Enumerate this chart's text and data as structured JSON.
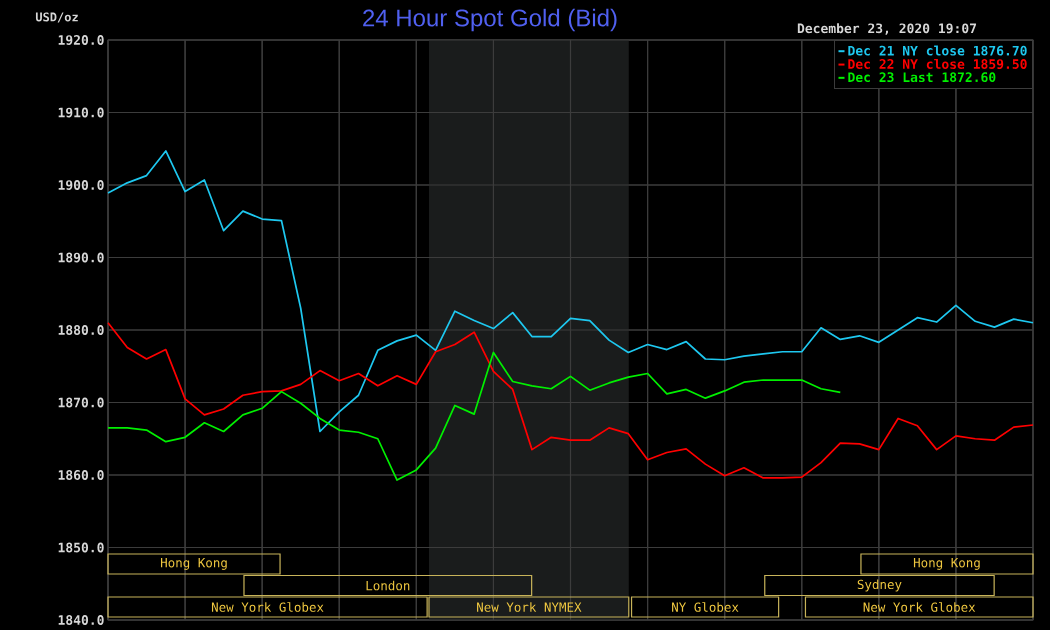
{
  "chart_data": {
    "type": "line",
    "title": "24 Hour Spot Gold (Bid)",
    "ylabel": "USD/oz",
    "annotations": [
      "December 23, 2020 19:07",
      "Hong Kong",
      "Hong Kong",
      "London",
      "Sydney",
      "New York Globex",
      "New York NYMEX",
      "NY Globex",
      "New York Globex"
    ],
    "categories": [
      null,
      null,
      null,
      null,
      null,
      null,
      null,
      null,
      null,
      null,
      null,
      null,
      null,
      null,
      null,
      null,
      null,
      null,
      null,
      null,
      null,
      null,
      null,
      null,
      null,
      null,
      null,
      null,
      null,
      null,
      null,
      null,
      null,
      null,
      null,
      null,
      null,
      null,
      null,
      null,
      null,
      null,
      null,
      null,
      null,
      null,
      null,
      null,
      null
    ],
    "ylim": [
      1840,
      1920
    ],
    "yticks": [
      {
        "value": 1840,
        "label": "1840.0"
      },
      {
        "value": 1850,
        "label": "1850.0"
      },
      {
        "value": 1860,
        "label": "1860.0"
      },
      {
        "value": 1870,
        "label": "1870.0"
      },
      {
        "value": 1880,
        "label": "1880.0"
      },
      {
        "value": 1890,
        "label": "1890.0"
      },
      {
        "value": 1900,
        "label": "1900.0"
      },
      {
        "value": 1910,
        "label": "1910.0"
      },
      {
        "value": 1920,
        "label": "1920.0"
      }
    ],
    "tick_labels": "y",
    "grid": true,
    "legend": "top right",
    "series": [
      {
        "name": "Dec 21 NY close 1876.70",
        "color": "#1ec8f0",
        "values": [
          1898.9,
          1900.3,
          1901.3,
          1904.7,
          1899.1,
          1900.7,
          1893.7,
          1896.4,
          1895.3,
          1895.1,
          1883.0,
          1866.0,
          1868.7,
          1871.0,
          1877.2,
          1878.5,
          1879.3,
          1877.2,
          1882.6,
          1881.3,
          1880.2,
          1882.4,
          1879.1,
          1879.1,
          1881.6,
          1881.3,
          1878.6,
          1876.9,
          1878.0,
          1877.3,
          1878.4,
          1876.0,
          1875.9,
          1876.4,
          1876.7,
          1877.0,
          1877.0,
          1880.3,
          1878.7,
          1879.2,
          1878.3,
          1880.0,
          1881.7,
          1881.1,
          1883.4,
          1881.2,
          1880.4,
          1881.5,
          1881.0
        ]
      },
      {
        "name": "Dec 22 NY close 1859.50",
        "color": "#ff0000",
        "values": [
          1881.0,
          1877.6,
          1876.0,
          1877.3,
          1870.5,
          1868.3,
          1869.1,
          1871.0,
          1871.5,
          1871.6,
          1872.5,
          1874.4,
          1873.0,
          1874.0,
          1872.3,
          1873.7,
          1872.5,
          1877.0,
          1878.0,
          1879.7,
          1874.3,
          1871.8,
          1863.5,
          1865.2,
          1864.8,
          1864.8,
          1866.5,
          1865.7,
          1862.1,
          1863.1,
          1863.6,
          1861.5,
          1859.9,
          1861.0,
          1859.6,
          1859.6,
          1859.7,
          1861.7,
          1864.4,
          1864.3,
          1863.5,
          1867.8,
          1866.8,
          1863.5,
          1865.4,
          1865.0,
          1864.8,
          1866.6,
          1866.9
        ]
      },
      {
        "name": "Dec 23 Last 1872.60",
        "color": "#00f000",
        "values": [
          1866.5,
          1866.5,
          1866.2,
          1864.6,
          1865.2,
          1867.2,
          1866.0,
          1868.3,
          1869.2,
          1871.5,
          1869.9,
          1867.8,
          1866.2,
          1865.9,
          1865.0,
          1859.3,
          1860.7,
          1863.7,
          1869.6,
          1868.4,
          1876.9,
          1872.9,
          1872.3,
          1871.9,
          1873.6,
          1871.7,
          1872.7,
          1873.5,
          1874.0,
          1871.2,
          1871.8,
          1870.6,
          1871.6,
          1872.8,
          1873.1,
          1873.1,
          1873.1,
          1871.9,
          1871.4,
          null,
          null,
          null,
          null,
          null,
          null,
          null,
          null,
          null,
          null
        ]
      }
    ]
  }
}
